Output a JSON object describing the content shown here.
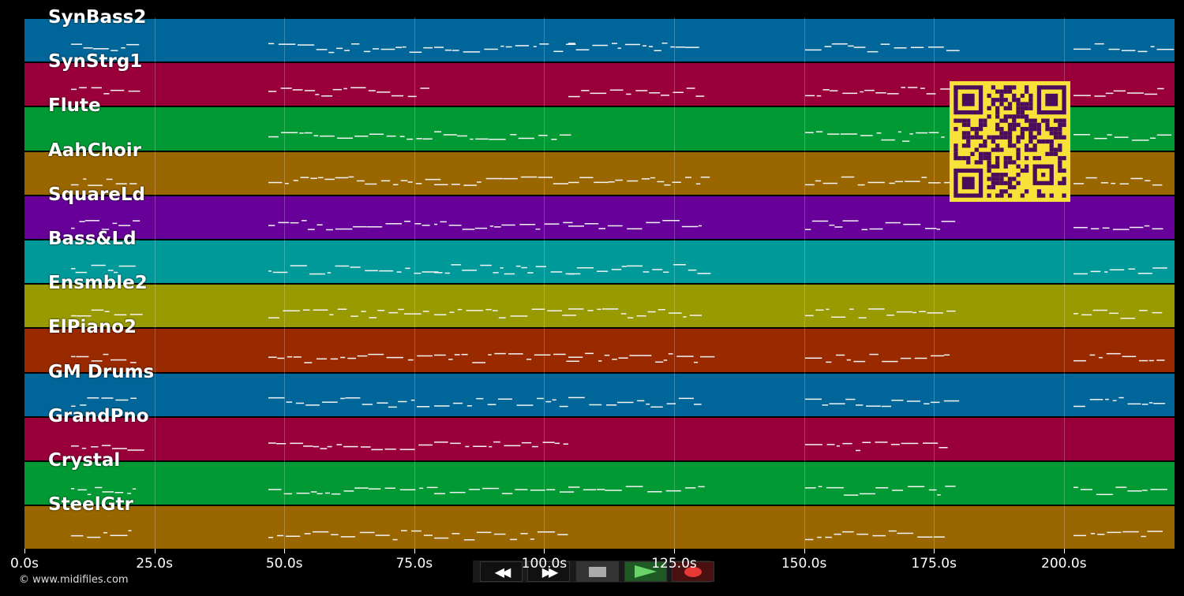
{
  "tracks": [
    {
      "name": "SynBass2",
      "color": "#006699"
    },
    {
      "name": "SynStrg1",
      "color": "#99003a"
    },
    {
      "name": "Flute",
      "color": "#009933"
    },
    {
      "name": "AahChoir",
      "color": "#996600"
    },
    {
      "name": "SquareLd",
      "color": "#660099"
    },
    {
      "name": "Bass&Ld",
      "color": "#009999"
    },
    {
      "name": "Ensmble2",
      "color": "#999900"
    },
    {
      "name": "ElPiano2",
      "color": "#992a00"
    },
    {
      "name": "GM Drums",
      "color": "#006699"
    },
    {
      "name": "GrandPno",
      "color": "#99003a"
    },
    {
      "name": "Crystal",
      "color": "#009933"
    },
    {
      "name": "SteelGtr",
      "color": "#996600"
    }
  ],
  "timeline": {
    "ticks": [
      "0.0s",
      "25.0s",
      "50.0s",
      "75.0s",
      "100.0s",
      "125.0s",
      "150.0s",
      "175.0s",
      "200.0s"
    ]
  },
  "footer": {
    "copyright": "© www.midifiles.com"
  },
  "transport": {
    "rewind_icon": "rewind-icon",
    "forward_icon": "fast-forward-icon",
    "stop_icon": "stop-icon",
    "play_icon": "play-icon",
    "record_icon": "record-icon"
  },
  "qr_code": {
    "icon": "qr-code-icon",
    "color": "#f7e23a",
    "module_color": "#4a0d5c"
  }
}
